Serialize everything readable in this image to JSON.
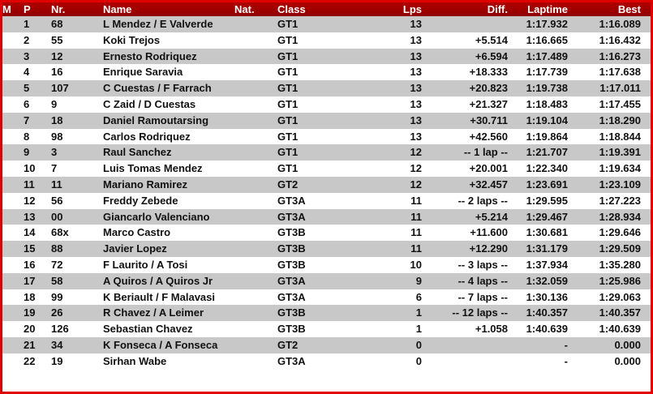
{
  "headers": {
    "m": "M",
    "p": "P",
    "nr": "Nr.",
    "name": "Name",
    "nat": "Nat.",
    "class": "Class",
    "lps": "Lps",
    "diff": "Diff.",
    "laptime": "Laptime",
    "best": "Best"
  },
  "colors": {
    "header": "#a00000",
    "border": "#e00000",
    "row_alt": "#c8c8c8",
    "status": "#22cc22"
  },
  "rows": [
    [
      "1",
      "68",
      "L Mendez / E Valverde",
      "GT1",
      "13",
      "",
      "1:17.932",
      "1:16.089"
    ],
    [
      "2",
      "55",
      "Koki Trejos",
      "GT1",
      "13",
      "+5.514",
      "1:16.665",
      "1:16.432"
    ],
    [
      "3",
      "12",
      "Ernesto Rodriquez",
      "GT1",
      "13",
      "+6.594",
      "1:17.489",
      "1:16.273"
    ],
    [
      "4",
      "16",
      "Enrique Saravia",
      "GT1",
      "13",
      "+18.333",
      "1:17.739",
      "1:17.638"
    ],
    [
      "5",
      "107",
      "C Cuestas / F Farrach",
      "GT1",
      "13",
      "+20.823",
      "1:19.738",
      "1:17.011"
    ],
    [
      "6",
      "9",
      "C Zaid / D Cuestas",
      "GT1",
      "13",
      "+21.327",
      "1:18.483",
      "1:17.455"
    ],
    [
      "7",
      "18",
      "Daniel Ramoutarsing",
      "GT1",
      "13",
      "+30.711",
      "1:19.104",
      "1:18.290"
    ],
    [
      "8",
      "98",
      "Carlos Rodriquez",
      "GT1",
      "13",
      "+42.560",
      "1:19.864",
      "1:18.844"
    ],
    [
      "9",
      "3",
      "Raul Sanchez",
      "GT1",
      "12",
      "-- 1 lap --",
      "1:21.707",
      "1:19.391"
    ],
    [
      "10",
      "7",
      "Luis Tomas Mendez",
      "GT1",
      "12",
      "+20.001",
      "1:22.340",
      "1:19.634"
    ],
    [
      "11",
      "11",
      "Mariano Ramirez",
      "GT2",
      "12",
      "+32.457",
      "1:23.691",
      "1:23.109"
    ],
    [
      "12",
      "56",
      "Freddy Zebede",
      "GT3A",
      "11",
      "-- 2 laps --",
      "1:29.595",
      "1:27.223"
    ],
    [
      "13",
      "00",
      "Giancarlo Valenciano",
      "GT3A",
      "11",
      "+5.214",
      "1:29.467",
      "1:28.934"
    ],
    [
      "14",
      "68x",
      "Marco Castro",
      "GT3B",
      "11",
      "+11.600",
      "1:30.681",
      "1:29.646"
    ],
    [
      "15",
      "88",
      "Javier Lopez",
      "GT3B",
      "11",
      "+12.290",
      "1:31.179",
      "1:29.509"
    ],
    [
      "16",
      "72",
      "F Laurito / A Tosi",
      "GT3B",
      "10",
      "-- 3 laps --",
      "1:37.934",
      "1:35.280"
    ],
    [
      "17",
      "58",
      "A Quiros / A Quiros Jr",
      "GT3A",
      "9",
      "-- 4 laps --",
      "1:32.059",
      "1:25.986"
    ],
    [
      "18",
      "99",
      "K Beriault / F Malavasi",
      "GT3A",
      "6",
      "-- 7 laps --",
      "1:30.136",
      "1:29.063"
    ],
    [
      "19",
      "26",
      "R Chavez / A Leimer",
      "GT3B",
      "1",
      "-- 12 laps --",
      "1:40.357",
      "1:40.357"
    ],
    [
      "20",
      "126",
      "Sebastian Chavez",
      "GT3B",
      "1",
      "+1.058",
      "1:40.639",
      "1:40.639"
    ],
    [
      "21",
      "34",
      "K Fonseca / A Fonseca",
      "GT2",
      "0",
      "",
      "-",
      "0.000"
    ],
    [
      "22",
      "19",
      "Sirhan Wabe",
      "GT3A",
      "0",
      "",
      "-",
      "0.000"
    ]
  ]
}
